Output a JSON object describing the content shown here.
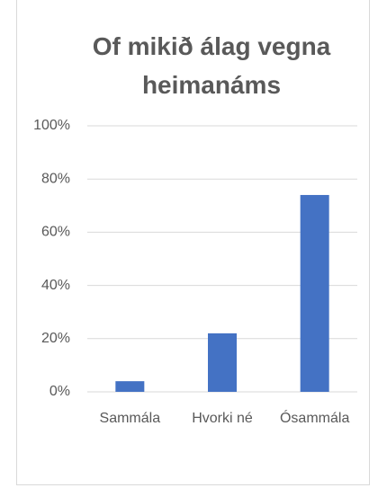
{
  "chart_data": {
    "type": "bar",
    "title": "Of mikið álag vegna heimanáms",
    "categories": [
      "Sammála",
      "Hvorki né",
      "Ósammála"
    ],
    "values": [
      4,
      22,
      74
    ],
    "color": "#4472c4",
    "ylim": [
      0,
      100
    ],
    "yticks": [
      {
        "value": 0,
        "label": "0%"
      },
      {
        "value": 20,
        "label": "20%"
      },
      {
        "value": 40,
        "label": "40%"
      },
      {
        "value": 60,
        "label": "60%"
      },
      {
        "value": 80,
        "label": "80%"
      },
      {
        "value": 100,
        "label": "100%"
      }
    ],
    "grid": true
  }
}
